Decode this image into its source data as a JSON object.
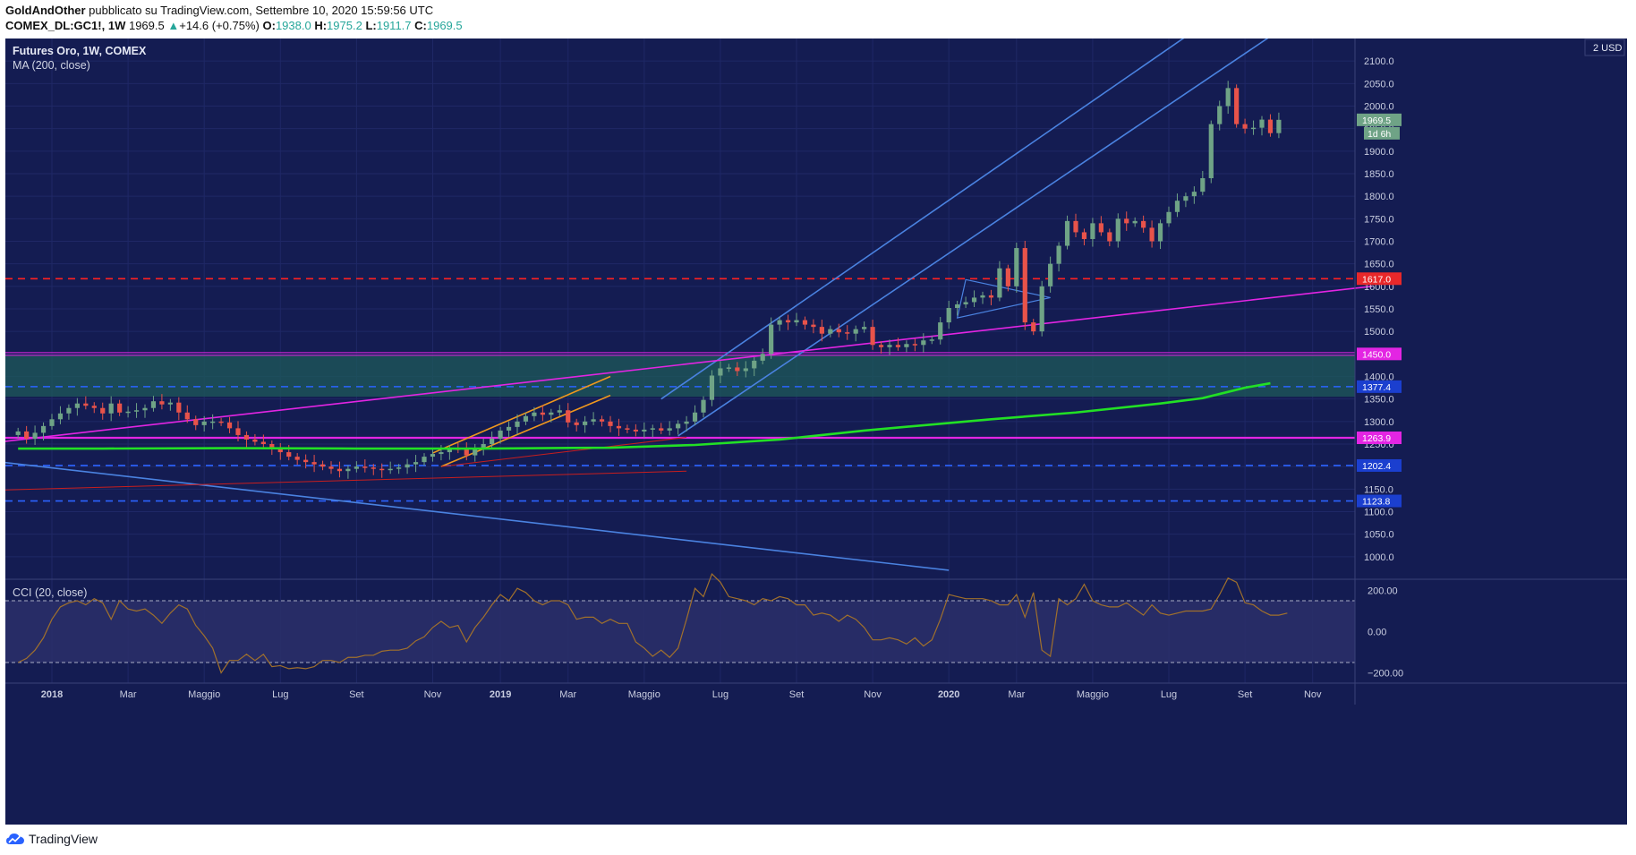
{
  "header": {
    "author": "GoldAndOther",
    "published_text": "pubblicato su TradingView.com, Settembre 10, 2020 15:59:56 UTC",
    "symbol": "COMEX_DL:GC1!, 1W",
    "last": "1969.5",
    "change": "+14.6 (+0.75%)",
    "o_label": "O:",
    "o_value": "1938.0",
    "h_label": "H:",
    "h_value": "1975.2",
    "l_label": "L:",
    "l_value": "1911.7",
    "c_label": "C:",
    "c_value": "1969.5"
  },
  "legend": {
    "title": "Futures Oro, 1W, COMEX",
    "ma": "MA (200, close)",
    "cci": "CCI (20, close)",
    "currency": "2 USD"
  },
  "footer": {
    "brand": "TradingView"
  },
  "colors": {
    "background": "#141c52",
    "up": "#6fa386",
    "down": "#e8534a",
    "ma": "#22e025",
    "magenta": "#e325e3",
    "channel": "#4a82e0",
    "orange": "#f0981e",
    "cci": "#a0702c"
  },
  "chart_data": [
    {
      "type": "candlestick",
      "title": "Futures Oro, 1W, COMEX",
      "ylim": [
        950,
        2150
      ],
      "y_ticks": [
        1000,
        1050,
        1100,
        1150,
        1200,
        1250,
        1300,
        1350,
        1400,
        1450,
        1500,
        1550,
        1600,
        1650,
        1700,
        1750,
        1800,
        1850,
        1900,
        1950,
        2000,
        2050,
        2100
      ],
      "x_ticks": [
        {
          "label": "2018",
          "week": 4,
          "bold": true
        },
        {
          "label": "Mar",
          "week": 13
        },
        {
          "label": "Maggio",
          "week": 22
        },
        {
          "label": "Lug",
          "week": 31
        },
        {
          "label": "Set",
          "week": 40
        },
        {
          "label": "Nov",
          "week": 49
        },
        {
          "label": "2019",
          "week": 57,
          "bold": true
        },
        {
          "label": "Mar",
          "week": 65
        },
        {
          "label": "Maggio",
          "week": 74
        },
        {
          "label": "Lug",
          "week": 83
        },
        {
          "label": "Set",
          "week": 92
        },
        {
          "label": "Nov",
          "week": 101
        },
        {
          "label": "2020",
          "week": 110,
          "bold": true
        },
        {
          "label": "Mar",
          "week": 118
        },
        {
          "label": "Maggio",
          "week": 127
        },
        {
          "label": "Lug",
          "week": 136
        },
        {
          "label": "Set",
          "week": 145
        },
        {
          "label": "Nov",
          "week": 153
        }
      ],
      "closes": [
        1278,
        1262,
        1275,
        1290,
        1305,
        1318,
        1330,
        1340,
        1335,
        1330,
        1318,
        1340,
        1320,
        1322,
        1325,
        1330,
        1345,
        1338,
        1342,
        1320,
        1305,
        1292,
        1300,
        1300,
        1298,
        1285,
        1270,
        1260,
        1255,
        1250,
        1240,
        1232,
        1222,
        1215,
        1210,
        1205,
        1200,
        1195,
        1190,
        1195,
        1200,
        1198,
        1195,
        1192,
        1195,
        1198,
        1205,
        1210,
        1222,
        1228,
        1232,
        1240,
        1238,
        1225,
        1242,
        1250,
        1262,
        1280,
        1288,
        1300,
        1312,
        1320,
        1315,
        1320,
        1325,
        1298,
        1292,
        1300,
        1305,
        1300,
        1290,
        1285,
        1282,
        1278,
        1282,
        1285,
        1280,
        1285,
        1295,
        1300,
        1320,
        1348,
        1402,
        1418,
        1420,
        1412,
        1418,
        1435,
        1450,
        1515,
        1525,
        1520,
        1525,
        1515,
        1510,
        1495,
        1505,
        1498,
        1495,
        1505,
        1510,
        1470,
        1465,
        1470,
        1465,
        1472,
        1470,
        1480,
        1482,
        1520,
        1552,
        1560,
        1565,
        1575,
        1580,
        1575,
        1640,
        1600,
        1685,
        1520,
        1500,
        1600,
        1650,
        1690,
        1745,
        1720,
        1705,
        1740,
        1720,
        1700,
        1750,
        1740,
        1745,
        1730,
        1700,
        1740,
        1765,
        1790,
        1800,
        1810,
        1840,
        1960,
        2000,
        2040,
        1960,
        1950,
        1952,
        1970,
        1940,
        1969.5
      ],
      "ma200": [
        [
          0,
          1240
        ],
        [
          10,
          1240
        ],
        [
          25,
          1241
        ],
        [
          40,
          1240
        ],
        [
          55,
          1240
        ],
        [
          70,
          1242
        ],
        [
          80,
          1248
        ],
        [
          90,
          1260
        ],
        [
          100,
          1280
        ],
        [
          115,
          1305
        ],
        [
          125,
          1320
        ],
        [
          135,
          1340
        ],
        [
          140,
          1352
        ],
        [
          145,
          1375
        ],
        [
          148,
          1385
        ]
      ],
      "lines": [
        {
          "name": "channel-upper",
          "points": [
            [
              76,
              1350
            ],
            [
              140,
              2180
            ]
          ]
        },
        {
          "name": "channel-lower",
          "points": [
            [
              78,
              1268
            ],
            [
              150,
              2180
            ]
          ]
        },
        {
          "name": "long-downtrend",
          "points": [
            [
              -2,
              1210
            ],
            [
              110,
              970
            ]
          ]
        },
        {
          "name": "magenta-trend",
          "points": [
            [
              -2,
              1255
            ],
            [
              160,
              1600
            ]
          ]
        },
        {
          "name": "orange-upper",
          "points": [
            [
              49,
              1230
            ],
            [
              70,
              1400
            ]
          ]
        },
        {
          "name": "orange-lower",
          "points": [
            [
              50,
              1200
            ],
            [
              70,
              1358
            ]
          ]
        },
        {
          "name": "red-trend",
          "points": [
            [
              -2,
              1148
            ],
            [
              79,
              1190
            ]
          ]
        },
        {
          "name": "red-trend-2",
          "points": [
            [
              50,
              1200
            ],
            [
              79,
              1265
            ]
          ]
        }
      ],
      "triangle": [
        [
          111,
          1530
        ],
        [
          112,
          1615
        ],
        [
          122,
          1575
        ]
      ],
      "levels": [
        {
          "value": 1617.0,
          "color": "#ff2020",
          "style": "dash",
          "label": "1617.0"
        },
        {
          "value": 1450.0,
          "color": "#e325e3",
          "style": "double",
          "label": "1450.0"
        },
        {
          "value": 1377.4,
          "color": "#2b63ff",
          "style": "dash",
          "label": "1377.4"
        },
        {
          "value": 1263.9,
          "color": "#e325e3",
          "style": "solid",
          "label": "1263.9"
        },
        {
          "value": 1202.4,
          "color": "#2b63ff",
          "style": "dash",
          "label": "1202.4"
        },
        {
          "value": 1123.8,
          "color": "#2b63ff",
          "style": "dash",
          "label": "1123.8"
        }
      ],
      "zone": [
        1355,
        1448
      ],
      "price_label": "1969.5",
      "timer_label": "1d 6h"
    },
    {
      "type": "line",
      "title": "CCI (20, close)",
      "ylim": [
        -250,
        250
      ],
      "y_ticks": [
        200,
        0,
        -200
      ],
      "y_tick_labels": [
        "200.00",
        "0.00",
        "−200.00"
      ],
      "bands": [
        150,
        -150
      ],
      "values": [
        -150,
        -130,
        -90,
        -30,
        60,
        120,
        140,
        150,
        130,
        160,
        140,
        60,
        150,
        110,
        100,
        110,
        80,
        40,
        90,
        130,
        110,
        30,
        -20,
        -80,
        -200,
        -140,
        -140,
        -110,
        -140,
        -110,
        -170,
        -165,
        -180,
        -175,
        -180,
        -170,
        -140,
        -140,
        -150,
        -125,
        -125,
        -115,
        -115,
        -95,
        -90,
        -90,
        -80,
        -45,
        -25,
        20,
        50,
        20,
        30,
        -50,
        20,
        70,
        130,
        180,
        150,
        210,
        190,
        150,
        130,
        150,
        150,
        130,
        60,
        70,
        70,
        40,
        60,
        40,
        40,
        -50,
        -80,
        -120,
        -90,
        -125,
        -80,
        60,
        210,
        170,
        280,
        240,
        170,
        160,
        150,
        130,
        160,
        150,
        170,
        160,
        130,
        130,
        80,
        90,
        80,
        50,
        80,
        60,
        20,
        -40,
        -40,
        -30,
        -40,
        -60,
        -30,
        -70,
        -40,
        60,
        180,
        170,
        160,
        160,
        160,
        150,
        130,
        130,
        180,
        70,
        190,
        -90,
        -120,
        160,
        130,
        160,
        230,
        150,
        130,
        120,
        120,
        140,
        110,
        80,
        130,
        90,
        80,
        90,
        100,
        100,
        100,
        110,
        180,
        260,
        240,
        140,
        130,
        100,
        80,
        80,
        90
      ]
    }
  ]
}
